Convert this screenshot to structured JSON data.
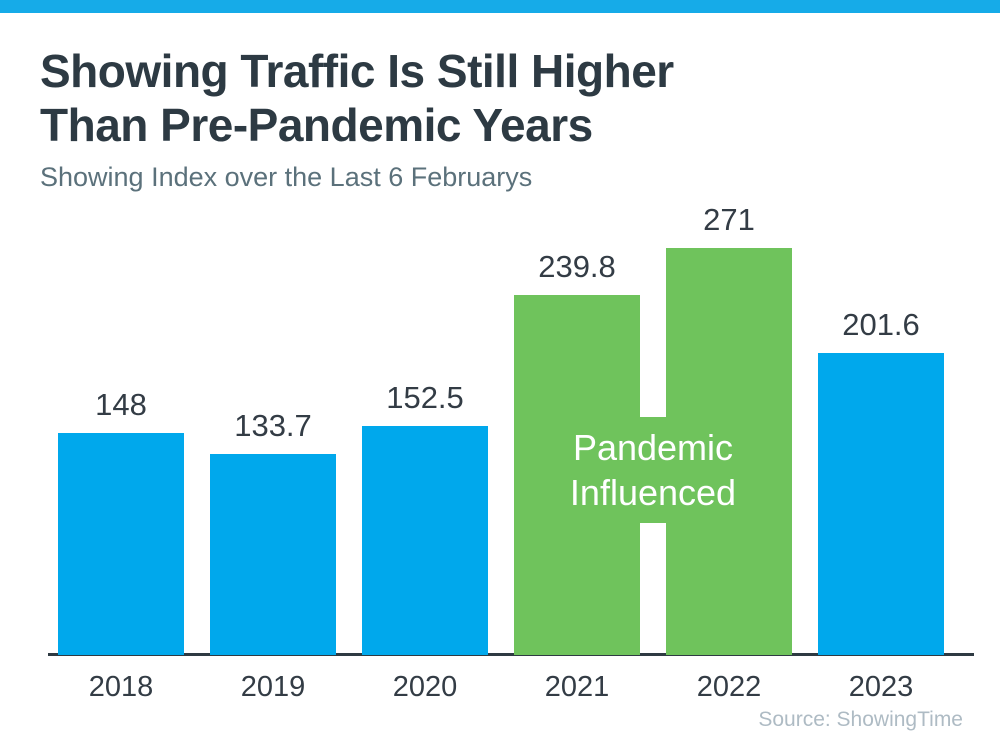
{
  "page": {
    "title_line1": "Showing Traffic Is Still Higher",
    "title_line2": "Than Pre-Pandemic Years",
    "subtitle": "Showing Index over the Last 6 Februarys",
    "source": "Source: ShowingTime"
  },
  "colors": {
    "accent_strip": "#16abe8",
    "bar_blue": "#00a8ec",
    "bar_green": "#6fc35c",
    "title_text": "#2d3a43",
    "subtitle_text": "#5b717b",
    "label_text": "#333c45",
    "axis_line": "#2e3a42",
    "source_text": "#aebbc4",
    "annotation_text": "#ffffff"
  },
  "chart_data": {
    "type": "bar",
    "title": "Showing Traffic Is Still Higher Than Pre-Pandemic Years",
    "subtitle": "Showing Index over the Last 6 Februarys",
    "categories": [
      "2018",
      "2019",
      "2020",
      "2021",
      "2022",
      "2023"
    ],
    "values": [
      148,
      133.7,
      152.5,
      239.8,
      271,
      201.6
    ],
    "value_labels": [
      "148",
      "133.7",
      "152.5",
      "239.8",
      "271",
      "201.6"
    ],
    "bar_colors": [
      "blue",
      "blue",
      "blue",
      "green",
      "green",
      "blue"
    ],
    "annotation": {
      "lines": [
        "Pandemic",
        "Influenced"
      ],
      "applies_to": [
        "2021",
        "2022"
      ]
    },
    "xlabel": "",
    "ylabel": "",
    "ylim": [
      0,
      280
    ],
    "grid": false,
    "legend": false,
    "source": "Source: ShowingTime"
  }
}
